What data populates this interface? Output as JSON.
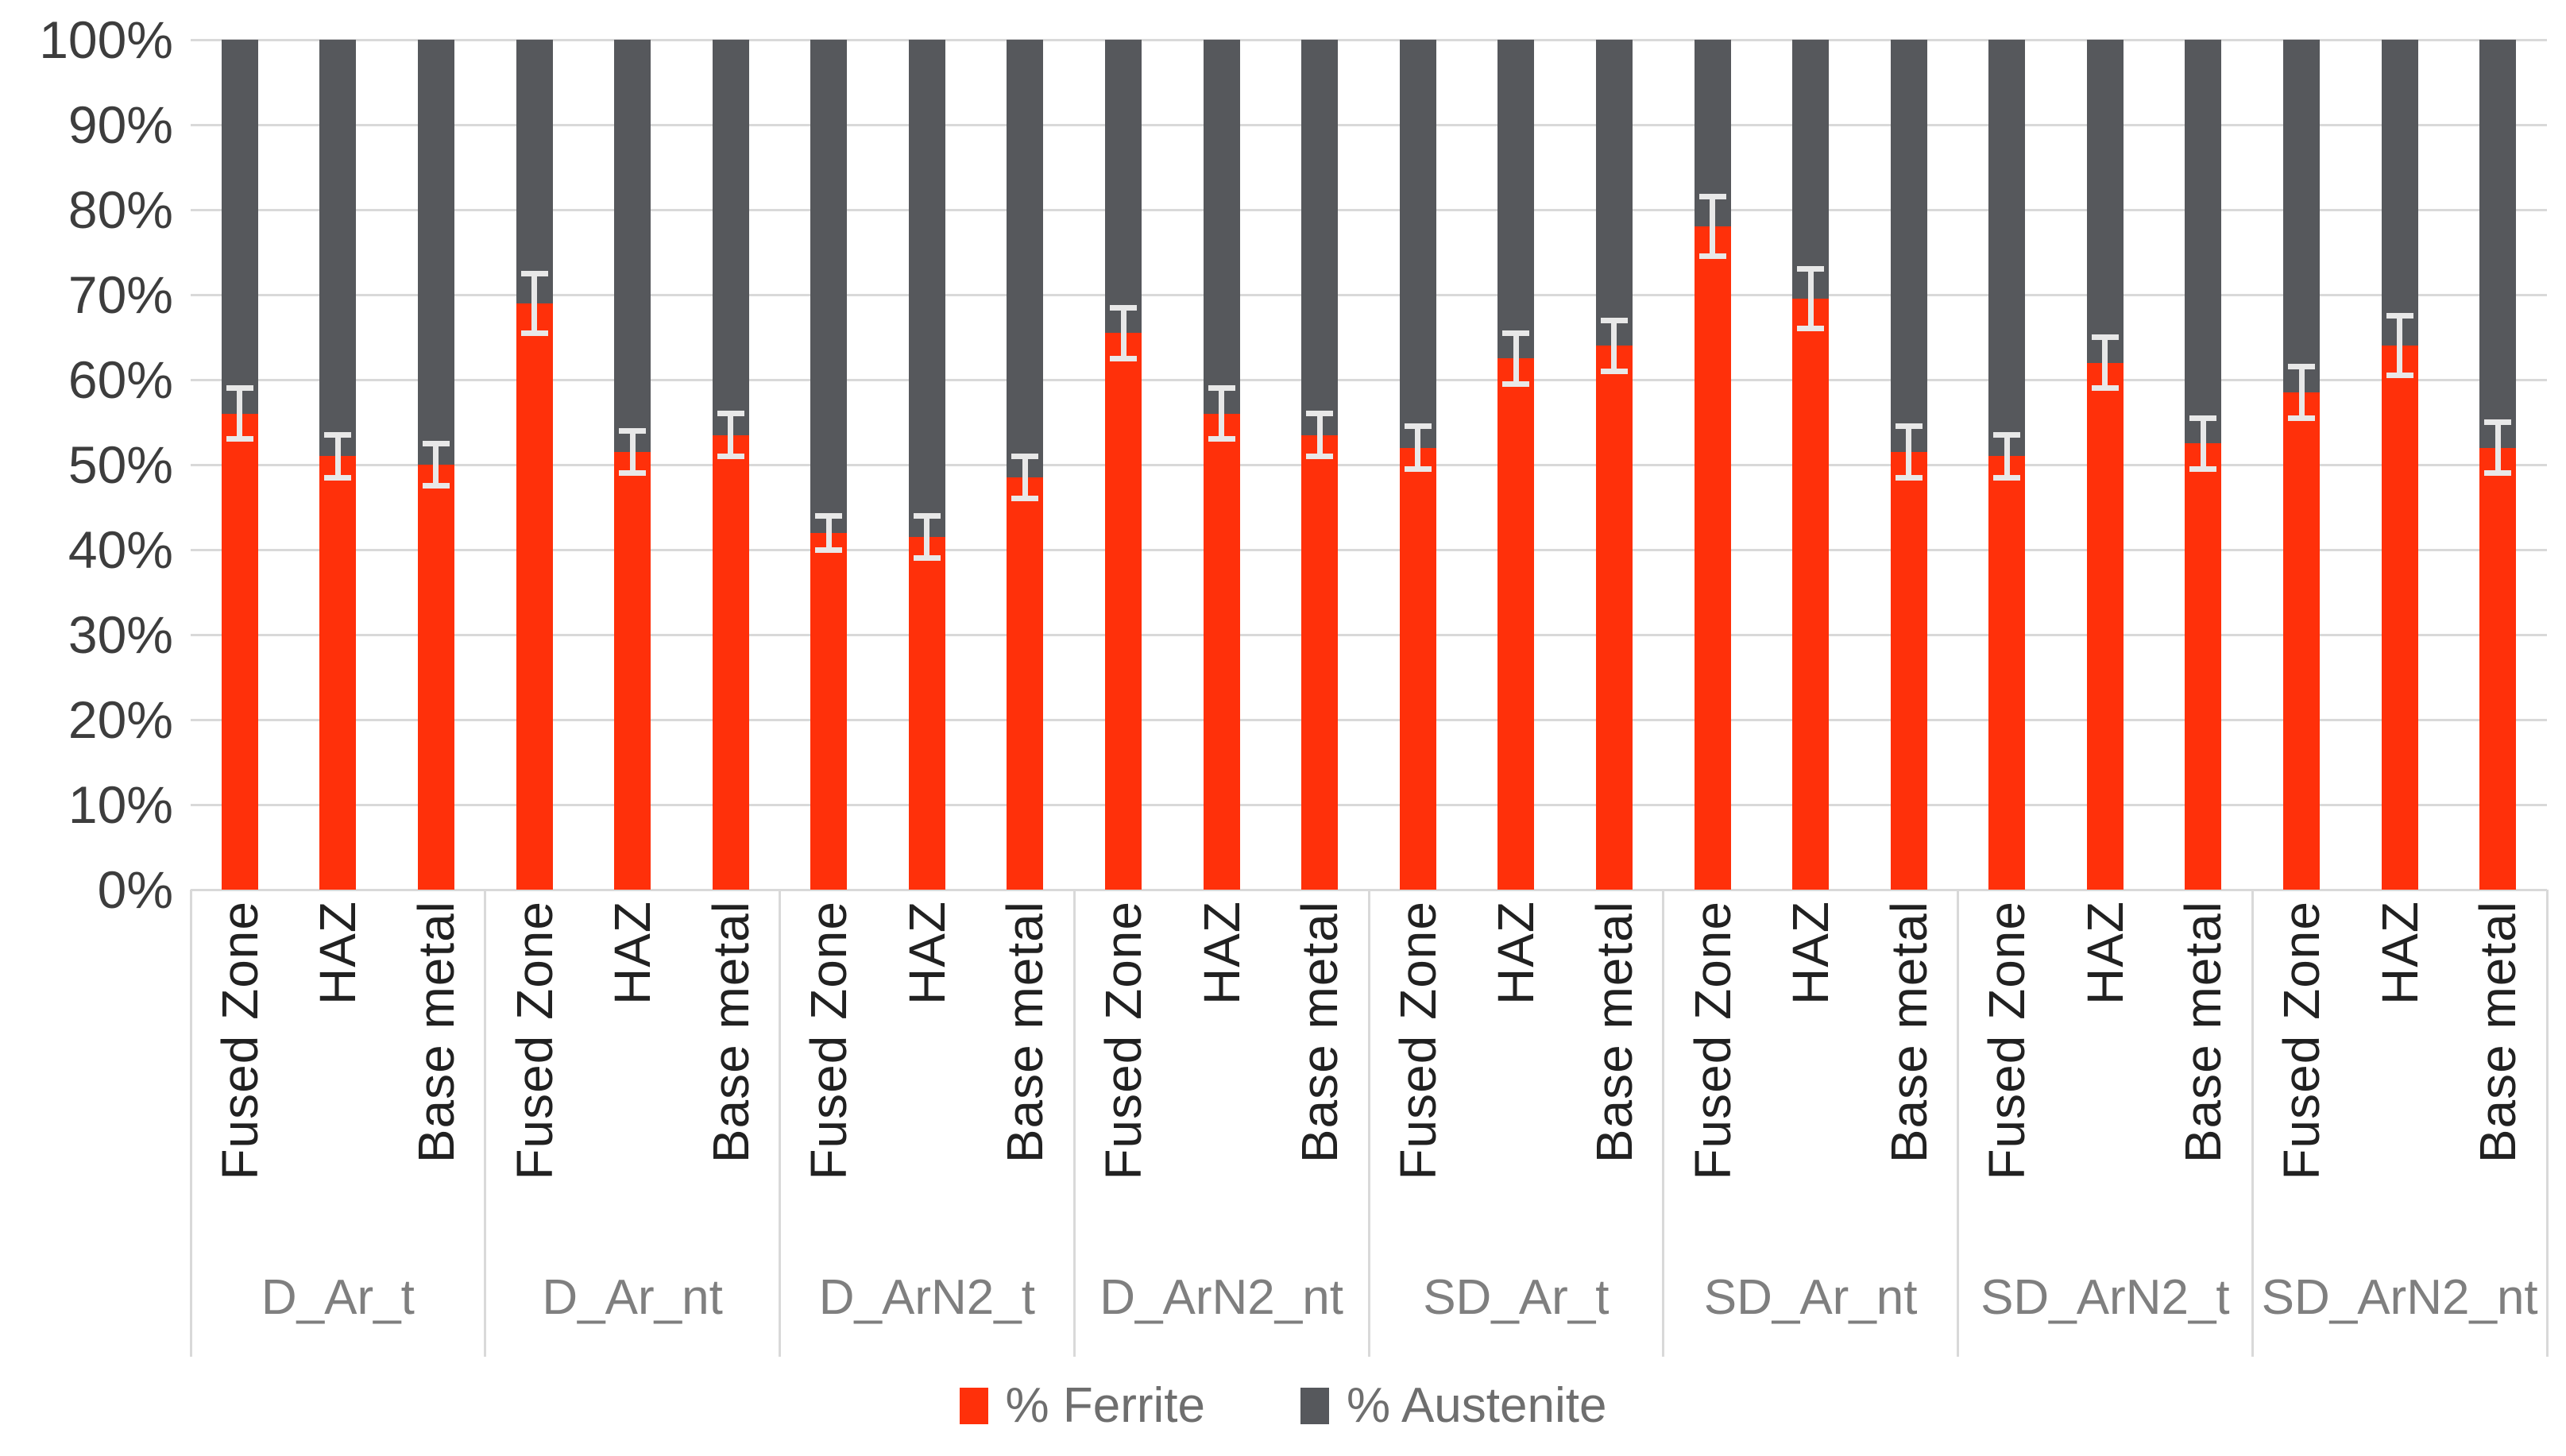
{
  "figure": {
    "background": "#ffffff"
  },
  "y_axis": {
    "tick_labels": [
      "0%",
      "10%",
      "20%",
      "30%",
      "40%",
      "50%",
      "60%",
      "70%",
      "80%",
      "90%",
      "100%"
    ],
    "tick_color": "#3d3d3d",
    "gridline_color": "#d9d9d9"
  },
  "legend": {
    "position": "bottom",
    "items": [
      {
        "label": "% Ferrite",
        "color": "#ff300a"
      },
      {
        "label": "% Austenite",
        "color": "#56585c"
      }
    ]
  },
  "chart_data": {
    "type": "bar",
    "subtype": "percent-stacked-column",
    "title": "",
    "xlabel": "",
    "ylabel": "",
    "ylim": [
      0,
      100
    ],
    "ytick_step": 10,
    "grid": true,
    "legend_position": "bottom",
    "groups": [
      "D_Ar_t",
      "D_Ar_nt",
      "D_ArN2_t",
      "D_ArN2_nt",
      "SD_Ar_t",
      "SD_Ar_nt",
      "SD_ArN2_t",
      "SD_ArN2_nt"
    ],
    "categories_per_group": [
      "Fused Zone",
      "HAZ",
      "Base metal"
    ],
    "series": [
      {
        "name": "% Ferrite",
        "color": "#ff300a",
        "values": [
          56,
          51,
          50,
          69,
          51.5,
          53.5,
          42,
          41.5,
          48.5,
          65.5,
          56,
          53.5,
          52,
          62.5,
          64,
          78,
          69.5,
          51.5,
          51,
          62,
          52.5,
          58.5,
          64,
          52
        ]
      },
      {
        "name": "% Austenite",
        "color": "#56585c",
        "values": [
          44,
          49,
          50,
          31,
          48.5,
          46.5,
          58,
          58.5,
          51.5,
          34.5,
          44,
          46.5,
          48,
          37.5,
          36,
          22,
          30.5,
          48.5,
          49,
          38,
          47.5,
          41.5,
          36,
          48
        ]
      }
    ],
    "error_bars": {
      "on_series": "% Ferrite",
      "color": "#e8e8e8",
      "plus_minus": [
        3,
        2.5,
        2.5,
        3.5,
        2.5,
        2.5,
        2,
        2.5,
        2.5,
        3,
        3,
        2.5,
        2.5,
        3,
        3,
        3.5,
        3.5,
        3,
        2.5,
        3,
        3,
        3,
        3.5,
        3
      ]
    }
  }
}
